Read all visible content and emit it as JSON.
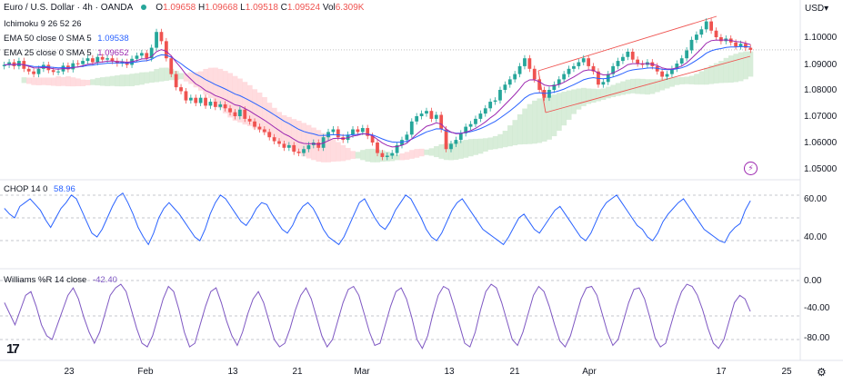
{
  "header": {
    "symbol": "Euro / U.S. Dollar · 4h · OANDA",
    "ohlc": [
      {
        "k": "O",
        "v": "1.09658"
      },
      {
        "k": "H",
        "v": "1.09668"
      },
      {
        "k": "L",
        "v": "1.09518"
      },
      {
        "k": "C",
        "v": "1.09524"
      },
      {
        "k": "Vol",
        "v": "6.309K"
      }
    ]
  },
  "indicators": {
    "ichimoku": {
      "label": "Ichimoku 9 26 52 26"
    },
    "ema50": {
      "label": "EMA 50 close 0 SMA 5",
      "value": "1.09538"
    },
    "ema25": {
      "label": "EMA 25 close 0 SMA 5",
      "value": "1.09652"
    },
    "chop": {
      "label": "CHOP 14 0",
      "value": "58.96"
    },
    "williams": {
      "label": "Williams %R 14 close",
      "value": "-42.40"
    }
  },
  "price_axis": {
    "currency": "USD",
    "ticks": [
      "1.10000",
      "1.09000",
      "1.08000",
      "1.07000",
      "1.06000",
      "1.05000"
    ]
  },
  "chop_axis": {
    "ticks": [
      "60.00",
      "40.00"
    ]
  },
  "wr_axis": {
    "ticks": [
      "0.00",
      "-40.00",
      "-80.00"
    ]
  },
  "time_axis": {
    "labels": [
      "23",
      "Feb",
      "13",
      "21",
      "Mar",
      "13",
      "21",
      "Apr",
      "17",
      "25"
    ]
  },
  "colors": {
    "up": "#26a69a",
    "down": "#ef5350",
    "ema50": "#2962ff",
    "ema25": "#9c27b0",
    "cloud_green": "#c8e6c9",
    "cloud_red": "#ffcdd2",
    "channel": "#ef5350",
    "oscillator": "#2962ff",
    "williams": "#7e57c2"
  },
  "chart_data": {
    "type": "candlestick",
    "title": "",
    "close_series": [
      1.0895,
      1.0905,
      1.089,
      1.091,
      1.088,
      1.087,
      1.086,
      1.088,
      1.0895,
      1.0875,
      1.0868,
      1.087,
      1.0892,
      1.0878,
      1.0901,
      1.0898,
      1.091,
      1.092,
      1.0905,
      1.0925,
      1.0915,
      1.092,
      1.091,
      1.09,
      1.0906,
      1.0895,
      1.0918,
      1.093,
      1.094,
      1.092,
      1.096,
      1.102,
      1.0985,
      1.092,
      1.086,
      1.081,
      1.0795,
      1.076,
      1.077,
      1.075,
      1.077,
      1.074,
      1.0755,
      1.0735,
      1.0745,
      1.073,
      1.0715,
      1.07,
      1.0725,
      1.069,
      1.068,
      1.066,
      1.065,
      1.064,
      1.062,
      1.0605,
      1.0595,
      1.058,
      1.059,
      1.0565,
      1.056,
      1.0575,
      1.059,
      1.06,
      1.058,
      1.062,
      1.064,
      1.065,
      1.062,
      1.061,
      1.063,
      1.065,
      1.064,
      1.0655,
      1.0625,
      1.06,
      1.056,
      1.0545,
      1.055,
      1.056,
      1.059,
      1.061,
      1.063,
      1.068,
      1.07,
      1.071,
      1.072,
      1.069,
      1.0705,
      1.065,
      1.0575,
      1.0595,
      1.061,
      1.0635,
      1.066,
      1.067,
      1.069,
      1.071,
      1.073,
      1.0755,
      1.076,
      1.08,
      1.082,
      1.084,
      1.086,
      1.089,
      1.092,
      1.088,
      1.084,
      1.08,
      1.077,
      1.08,
      1.082,
      1.084,
      1.086,
      1.088,
      1.089,
      1.0905,
      1.092,
      1.089,
      1.087,
      1.082,
      1.083,
      1.086,
      1.089,
      1.091,
      1.0925,
      1.0945,
      1.0915,
      1.09,
      1.0895,
      1.0905,
      1.089,
      1.087,
      1.085,
      1.086,
      1.088,
      1.09,
      1.092,
      1.095,
      1.099,
      1.101,
      1.103,
      1.106,
      1.1025,
      1.1,
      1.0985,
      1.0995,
      1.098,
      1.0965,
      1.0975,
      1.096,
      1.0952
    ],
    "chop_series": [
      55,
      52,
      50,
      56,
      58,
      60,
      57,
      54,
      49,
      45,
      50,
      55,
      58,
      62,
      60,
      54,
      48,
      42,
      40,
      44,
      50,
      56,
      61,
      63,
      58,
      52,
      45,
      40,
      36,
      42,
      50,
      55,
      58,
      55,
      52,
      48,
      44,
      40,
      38,
      44,
      52,
      58,
      62,
      60,
      56,
      52,
      48,
      46,
      50,
      55,
      58,
      57,
      52,
      48,
      44,
      42,
      46,
      52,
      56,
      58,
      55,
      50,
      44,
      40,
      38,
      36,
      40,
      46,
      52,
      58,
      60,
      55,
      50,
      46,
      44,
      48,
      54,
      58,
      62,
      60,
      55,
      50,
      44,
      40,
      38,
      42,
      48,
      54,
      58,
      60,
      56,
      52,
      48,
      44,
      42,
      40,
      38,
      36,
      40,
      45,
      50,
      52,
      48,
      44,
      42,
      46,
      50,
      54,
      56,
      52,
      48,
      44,
      40,
      38,
      42,
      48,
      54,
      58,
      60,
      62,
      58,
      54,
      50,
      46,
      44,
      40,
      38,
      42,
      48,
      52,
      55,
      58,
      60,
      56,
      52,
      48,
      44,
      42,
      40,
      38,
      37,
      42,
      45,
      47,
      54,
      59
    ],
    "wr_series": [
      -30,
      -45,
      -60,
      -40,
      -20,
      -15,
      -35,
      -60,
      -75,
      -80,
      -60,
      -40,
      -20,
      -10,
      -25,
      -50,
      -70,
      -85,
      -70,
      -45,
      -20,
      -10,
      -5,
      -15,
      -40,
      -65,
      -85,
      -90,
      -75,
      -50,
      -25,
      -8,
      -15,
      -40,
      -70,
      -90,
      -85,
      -60,
      -35,
      -15,
      -10,
      -30,
      -55,
      -75,
      -88,
      -70,
      -45,
      -25,
      -15,
      -30,
      -55,
      -80,
      -90,
      -85,
      -65,
      -40,
      -20,
      -10,
      -25,
      -50,
      -75,
      -90,
      -80,
      -55,
      -30,
      -12,
      -8,
      -20,
      -45,
      -70,
      -88,
      -85,
      -60,
      -35,
      -15,
      -10,
      -25,
      -50,
      -80,
      -92,
      -75,
      -45,
      -20,
      -8,
      -12,
      -35,
      -60,
      -85,
      -90,
      -70,
      -40,
      -15,
      -5,
      -10,
      -30,
      -55,
      -80,
      -88,
      -70,
      -45,
      -20,
      -8,
      -15,
      -35,
      -60,
      -82,
      -90,
      -75,
      -50,
      -25,
      -10,
      -8,
      -20,
      -45,
      -70,
      -88,
      -80,
      -55,
      -30,
      -12,
      -10,
      -25,
      -50,
      -78,
      -90,
      -85,
      -60,
      -35,
      -15,
      -5,
      -8,
      -20,
      -40,
      -65,
      -85,
      -92,
      -80,
      -55,
      -30,
      -20,
      -25,
      -42
    ]
  }
}
